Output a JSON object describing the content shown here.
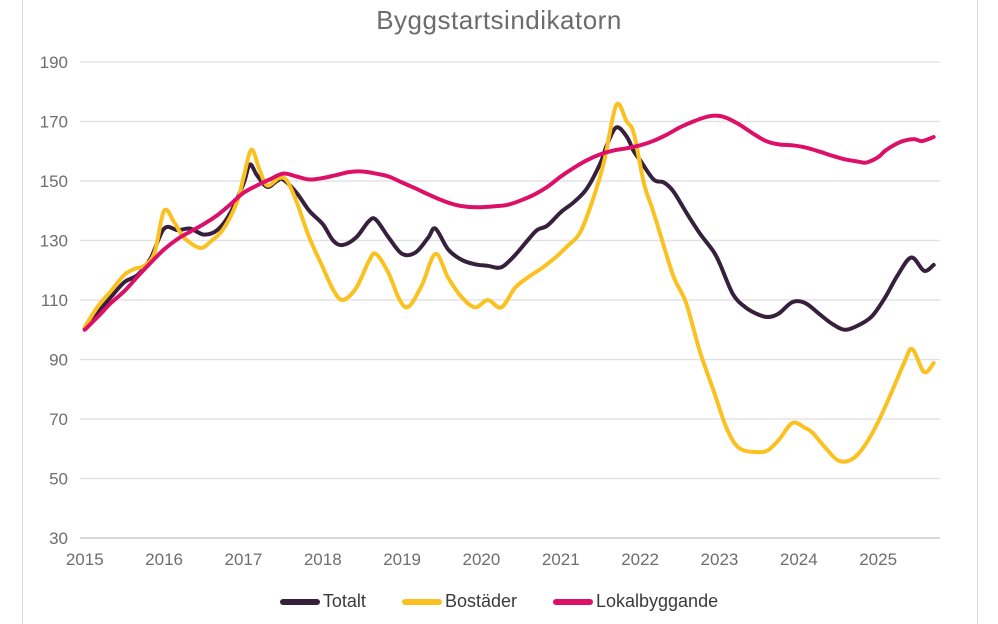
{
  "title": "Byggstartsindikatorn",
  "frame": {
    "border_color": "#d9d9d9",
    "grid_color": "#e3e3e3",
    "axis_line_color": "#cccccc",
    "tick_color": "#6e6e6e",
    "title_color": "#6c6c6c"
  },
  "chart_data": {
    "type": "line",
    "title": "Byggstartsindikatorn",
    "xlabel": "",
    "ylabel": "",
    "x_ticks": [
      2015,
      2016,
      2017,
      2018,
      2019,
      2020,
      2021,
      2022,
      2023,
      2024,
      2025
    ],
    "y_ticks": [
      190,
      170,
      150,
      130,
      110,
      90,
      70,
      50,
      30
    ],
    "xlim": [
      2014.94,
      2025.78
    ],
    "ylim": [
      30,
      190
    ],
    "grid": "horizontal",
    "legend_position": "bottom",
    "series": [
      {
        "name": "Totalt",
        "color": "#37203c",
        "points": [
          [
            2015.0,
            100.5
          ],
          [
            2015.17,
            106
          ],
          [
            2015.33,
            111
          ],
          [
            2015.5,
            116
          ],
          [
            2015.67,
            118.5
          ],
          [
            2015.83,
            124
          ],
          [
            2016.0,
            134
          ],
          [
            2016.17,
            133.5
          ],
          [
            2016.33,
            134
          ],
          [
            2016.5,
            132
          ],
          [
            2016.67,
            133.5
          ],
          [
            2016.83,
            139
          ],
          [
            2017.0,
            149
          ],
          [
            2017.08,
            155.5
          ],
          [
            2017.17,
            152
          ],
          [
            2017.3,
            148
          ],
          [
            2017.42,
            150
          ],
          [
            2017.5,
            150.5
          ],
          [
            2017.67,
            146
          ],
          [
            2017.83,
            140
          ],
          [
            2018.0,
            135.5
          ],
          [
            2018.13,
            130
          ],
          [
            2018.25,
            128.5
          ],
          [
            2018.42,
            131
          ],
          [
            2018.58,
            136.5
          ],
          [
            2018.67,
            137
          ],
          [
            2018.83,
            131
          ],
          [
            2019.0,
            125.5
          ],
          [
            2019.17,
            126
          ],
          [
            2019.33,
            131
          ],
          [
            2019.42,
            134
          ],
          [
            2019.58,
            127
          ],
          [
            2019.75,
            123.5
          ],
          [
            2019.92,
            122
          ],
          [
            2020.08,
            121.5
          ],
          [
            2020.25,
            121
          ],
          [
            2020.42,
            125
          ],
          [
            2020.58,
            130
          ],
          [
            2020.7,
            133.5
          ],
          [
            2020.83,
            135
          ],
          [
            2021.0,
            139.5
          ],
          [
            2021.17,
            143
          ],
          [
            2021.33,
            147.5
          ],
          [
            2021.5,
            156
          ],
          [
            2021.58,
            162
          ],
          [
            2021.7,
            168
          ],
          [
            2021.83,
            165
          ],
          [
            2021.92,
            160
          ],
          [
            2022.0,
            157
          ],
          [
            2022.17,
            150.5
          ],
          [
            2022.3,
            149.5
          ],
          [
            2022.42,
            146.5
          ],
          [
            2022.58,
            139.5
          ],
          [
            2022.75,
            132.5
          ],
          [
            2022.92,
            126.5
          ],
          [
            2023.0,
            122.5
          ],
          [
            2023.17,
            112
          ],
          [
            2023.33,
            107.5
          ],
          [
            2023.5,
            105
          ],
          [
            2023.62,
            104.3
          ],
          [
            2023.75,
            105.5
          ],
          [
            2023.92,
            109.3
          ],
          [
            2024.08,
            109
          ],
          [
            2024.25,
            105.5
          ],
          [
            2024.42,
            102
          ],
          [
            2024.58,
            100
          ],
          [
            2024.75,
            101.5
          ],
          [
            2024.92,
            104.5
          ],
          [
            2025.08,
            110.5
          ],
          [
            2025.25,
            118.5
          ],
          [
            2025.42,
            124.3
          ],
          [
            2025.58,
            119.8
          ],
          [
            2025.7,
            121.8
          ]
        ]
      },
      {
        "name": "Bostäder",
        "color": "#fbc120",
        "points": [
          [
            2015.0,
            101
          ],
          [
            2015.17,
            108
          ],
          [
            2015.33,
            113
          ],
          [
            2015.5,
            118.5
          ],
          [
            2015.63,
            120.5
          ],
          [
            2015.75,
            121.5
          ],
          [
            2015.88,
            126
          ],
          [
            2016.0,
            140
          ],
          [
            2016.13,
            136
          ],
          [
            2016.25,
            131
          ],
          [
            2016.45,
            127.5
          ],
          [
            2016.58,
            129.5
          ],
          [
            2016.75,
            134
          ],
          [
            2016.92,
            143
          ],
          [
            2017.0,
            151
          ],
          [
            2017.1,
            160.5
          ],
          [
            2017.2,
            154
          ],
          [
            2017.3,
            148.5
          ],
          [
            2017.45,
            151
          ],
          [
            2017.55,
            150
          ],
          [
            2017.67,
            143
          ],
          [
            2017.83,
            131
          ],
          [
            2018.0,
            121
          ],
          [
            2018.13,
            113.5
          ],
          [
            2018.25,
            110
          ],
          [
            2018.42,
            114
          ],
          [
            2018.58,
            123
          ],
          [
            2018.67,
            125.5
          ],
          [
            2018.83,
            119
          ],
          [
            2018.96,
            110.5
          ],
          [
            2019.08,
            107.7
          ],
          [
            2019.25,
            115
          ],
          [
            2019.42,
            125.5
          ],
          [
            2019.58,
            117.5
          ],
          [
            2019.75,
            111
          ],
          [
            2019.92,
            107.5
          ],
          [
            2020.08,
            110
          ],
          [
            2020.25,
            107.5
          ],
          [
            2020.42,
            114
          ],
          [
            2020.58,
            117.5
          ],
          [
            2020.75,
            120.5
          ],
          [
            2020.92,
            124
          ],
          [
            2021.08,
            128
          ],
          [
            2021.25,
            133
          ],
          [
            2021.42,
            145
          ],
          [
            2021.55,
            157
          ],
          [
            2021.7,
            175.5
          ],
          [
            2021.83,
            170
          ],
          [
            2021.92,
            166
          ],
          [
            2022.05,
            149
          ],
          [
            2022.15,
            141
          ],
          [
            2022.25,
            132.5
          ],
          [
            2022.42,
            118
          ],
          [
            2022.58,
            109
          ],
          [
            2022.75,
            93
          ],
          [
            2022.92,
            80
          ],
          [
            2023.02,
            72
          ],
          [
            2023.1,
            66.3
          ],
          [
            2023.2,
            61.5
          ],
          [
            2023.3,
            59.5
          ],
          [
            2023.45,
            58.9
          ],
          [
            2023.6,
            59.3
          ],
          [
            2023.75,
            63
          ],
          [
            2023.92,
            68.7
          ],
          [
            2024.08,
            67
          ],
          [
            2024.17,
            65.5
          ],
          [
            2024.33,
            60.5
          ],
          [
            2024.5,
            56
          ],
          [
            2024.67,
            56.5
          ],
          [
            2024.83,
            61
          ],
          [
            2025.0,
            69
          ],
          [
            2025.17,
            79
          ],
          [
            2025.33,
            89
          ],
          [
            2025.43,
            93.5
          ],
          [
            2025.58,
            85.8
          ],
          [
            2025.7,
            88.8
          ]
        ]
      },
      {
        "name": "Lokalbyggande",
        "color": "#dd1069",
        "points": [
          [
            2015.0,
            100
          ],
          [
            2015.17,
            104.5
          ],
          [
            2015.33,
            109
          ],
          [
            2015.5,
            113
          ],
          [
            2015.67,
            118
          ],
          [
            2015.83,
            122.5
          ],
          [
            2016.0,
            127
          ],
          [
            2016.17,
            130.5
          ],
          [
            2016.33,
            133
          ],
          [
            2016.5,
            135.5
          ],
          [
            2016.67,
            138.5
          ],
          [
            2016.83,
            142
          ],
          [
            2017.0,
            146
          ],
          [
            2017.17,
            148.5
          ],
          [
            2017.33,
            150.5
          ],
          [
            2017.5,
            152.5
          ],
          [
            2017.67,
            151.5
          ],
          [
            2017.83,
            150.5
          ],
          [
            2018.0,
            151
          ],
          [
            2018.17,
            152
          ],
          [
            2018.33,
            153
          ],
          [
            2018.5,
            153.2
          ],
          [
            2018.67,
            152.5
          ],
          [
            2018.83,
            151.5
          ],
          [
            2019.0,
            149.5
          ],
          [
            2019.17,
            147.5
          ],
          [
            2019.33,
            145.5
          ],
          [
            2019.5,
            143.5
          ],
          [
            2019.67,
            142
          ],
          [
            2019.83,
            141.3
          ],
          [
            2020.0,
            141.2
          ],
          [
            2020.17,
            141.5
          ],
          [
            2020.33,
            142
          ],
          [
            2020.5,
            143.5
          ],
          [
            2020.67,
            145.5
          ],
          [
            2020.83,
            148
          ],
          [
            2021.0,
            151.5
          ],
          [
            2021.17,
            154.5
          ],
          [
            2021.33,
            157
          ],
          [
            2021.5,
            159
          ],
          [
            2021.67,
            160.3
          ],
          [
            2021.83,
            161
          ],
          [
            2022.0,
            162
          ],
          [
            2022.17,
            163.5
          ],
          [
            2022.33,
            165.5
          ],
          [
            2022.5,
            168
          ],
          [
            2022.67,
            170
          ],
          [
            2022.83,
            171.5
          ],
          [
            2022.95,
            172
          ],
          [
            2023.08,
            171.3
          ],
          [
            2023.25,
            169
          ],
          [
            2023.42,
            166
          ],
          [
            2023.58,
            163.5
          ],
          [
            2023.75,
            162.3
          ],
          [
            2023.92,
            162
          ],
          [
            2024.08,
            161.3
          ],
          [
            2024.25,
            160
          ],
          [
            2024.42,
            158.5
          ],
          [
            2024.58,
            157.3
          ],
          [
            2024.75,
            156.5
          ],
          [
            2024.85,
            156.2
          ],
          [
            2025.0,
            158
          ],
          [
            2025.1,
            160.4
          ],
          [
            2025.28,
            163.1
          ],
          [
            2025.45,
            164.1
          ],
          [
            2025.55,
            163.4
          ],
          [
            2025.7,
            164.8
          ]
        ]
      }
    ]
  }
}
